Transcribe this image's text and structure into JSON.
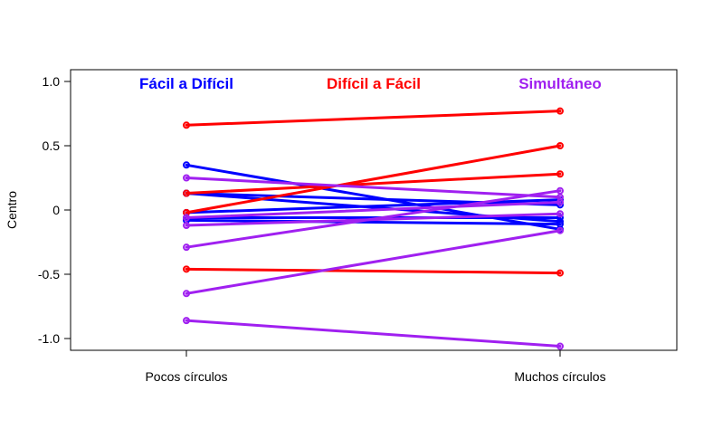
{
  "chart_data": {
    "type": "line",
    "title": "",
    "xlabel": "",
    "ylabel": "Centro",
    "categories": [
      "Pocos círculos",
      "Muchos círculos"
    ],
    "ylim": [
      -1.07,
      1.07
    ],
    "yticks": [
      1.0,
      0.5,
      0,
      -0.5,
      -1.0
    ],
    "ytick_labels": [
      "1.0",
      "0.5",
      "0",
      "-0.5",
      "-1.0"
    ],
    "groups": [
      {
        "name": "Fácil a Difícil",
        "color": "#0000ff",
        "lines": [
          [
            0.35,
            -0.15
          ],
          [
            0.13,
            -0.09
          ],
          [
            0.13,
            0.04
          ],
          [
            -0.02,
            0.08
          ],
          [
            -0.06,
            -0.06
          ],
          [
            -0.08,
            -0.11
          ]
        ]
      },
      {
        "name": "Difícil a Fácil",
        "color": "#ff0000",
        "lines": [
          [
            0.66,
            0.77
          ],
          [
            -0.02,
            0.5
          ],
          [
            0.13,
            0.28
          ],
          [
            -0.46,
            -0.49
          ]
        ]
      },
      {
        "name": "Simultáneo",
        "color": "#a020f0",
        "lines": [
          [
            0.25,
            0.1
          ],
          [
            -0.12,
            -0.03
          ],
          [
            -0.06,
            0.06
          ],
          [
            -0.29,
            0.15
          ],
          [
            -0.65,
            -0.16
          ],
          [
            -0.86,
            -1.06
          ]
        ]
      }
    ]
  }
}
